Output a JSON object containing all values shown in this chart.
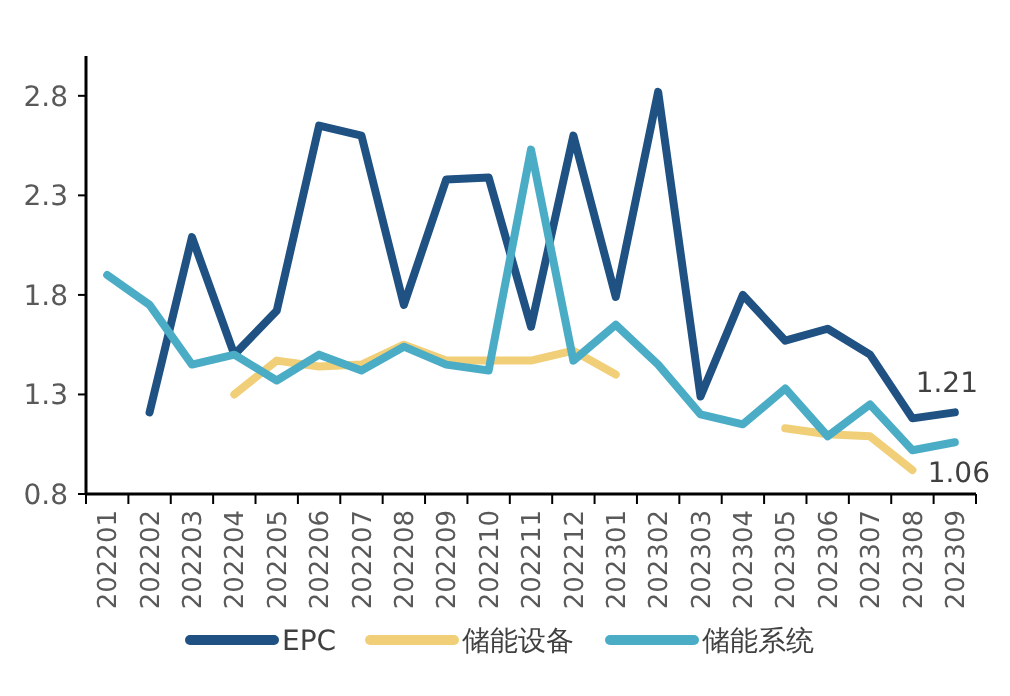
{
  "chart_data": {
    "type": "line",
    "categories": [
      "202201",
      "202202",
      "202203",
      "202204",
      "202205",
      "202206",
      "202207",
      "202208",
      "202209",
      "202210",
      "202211",
      "202212",
      "202301",
      "202302",
      "202303",
      "202304",
      "202305",
      "202306",
      "202307",
      "202308",
      "202309"
    ],
    "series": [
      {
        "name": "EPC",
        "color": "#1f5183",
        "values": [
          null,
          1.21,
          2.09,
          1.5,
          1.72,
          2.65,
          2.6,
          1.75,
          2.38,
          2.39,
          1.64,
          2.6,
          1.79,
          2.82,
          1.29,
          1.8,
          1.57,
          1.63,
          1.5,
          1.18,
          1.21
        ],
        "value_labels": [
          null,
          null,
          null,
          null,
          null,
          null,
          null,
          null,
          null,
          null,
          null,
          null,
          null,
          null,
          null,
          null,
          null,
          null,
          null,
          null,
          "1.21"
        ]
      },
      {
        "name": "储能设备",
        "color": "#f0cf78",
        "values": [
          null,
          null,
          null,
          1.3,
          1.47,
          1.44,
          1.45,
          1.55,
          1.47,
          1.47,
          1.47,
          1.52,
          1.4,
          null,
          null,
          null,
          1.13,
          1.1,
          1.09,
          0.92,
          null
        ]
      },
      {
        "name": "储能系统",
        "color": "#4bacc6",
        "values": [
          1.9,
          1.75,
          1.45,
          1.5,
          1.37,
          1.5,
          1.42,
          1.54,
          1.45,
          1.42,
          2.53,
          1.47,
          1.65,
          1.45,
          1.2,
          1.15,
          1.33,
          1.09,
          1.25,
          1.02,
          1.06
        ],
        "value_labels": [
          null,
          null,
          null,
          null,
          null,
          null,
          null,
          null,
          null,
          null,
          null,
          null,
          null,
          null,
          null,
          null,
          null,
          null,
          null,
          null,
          "1.06"
        ]
      }
    ],
    "ylim": [
      0.8,
      3.0
    ],
    "yticks": [
      0.8,
      1.3,
      1.8,
      2.3,
      2.8
    ],
    "grid": false,
    "legend": "bottom",
    "line_style": "solid",
    "marker": "none"
  }
}
